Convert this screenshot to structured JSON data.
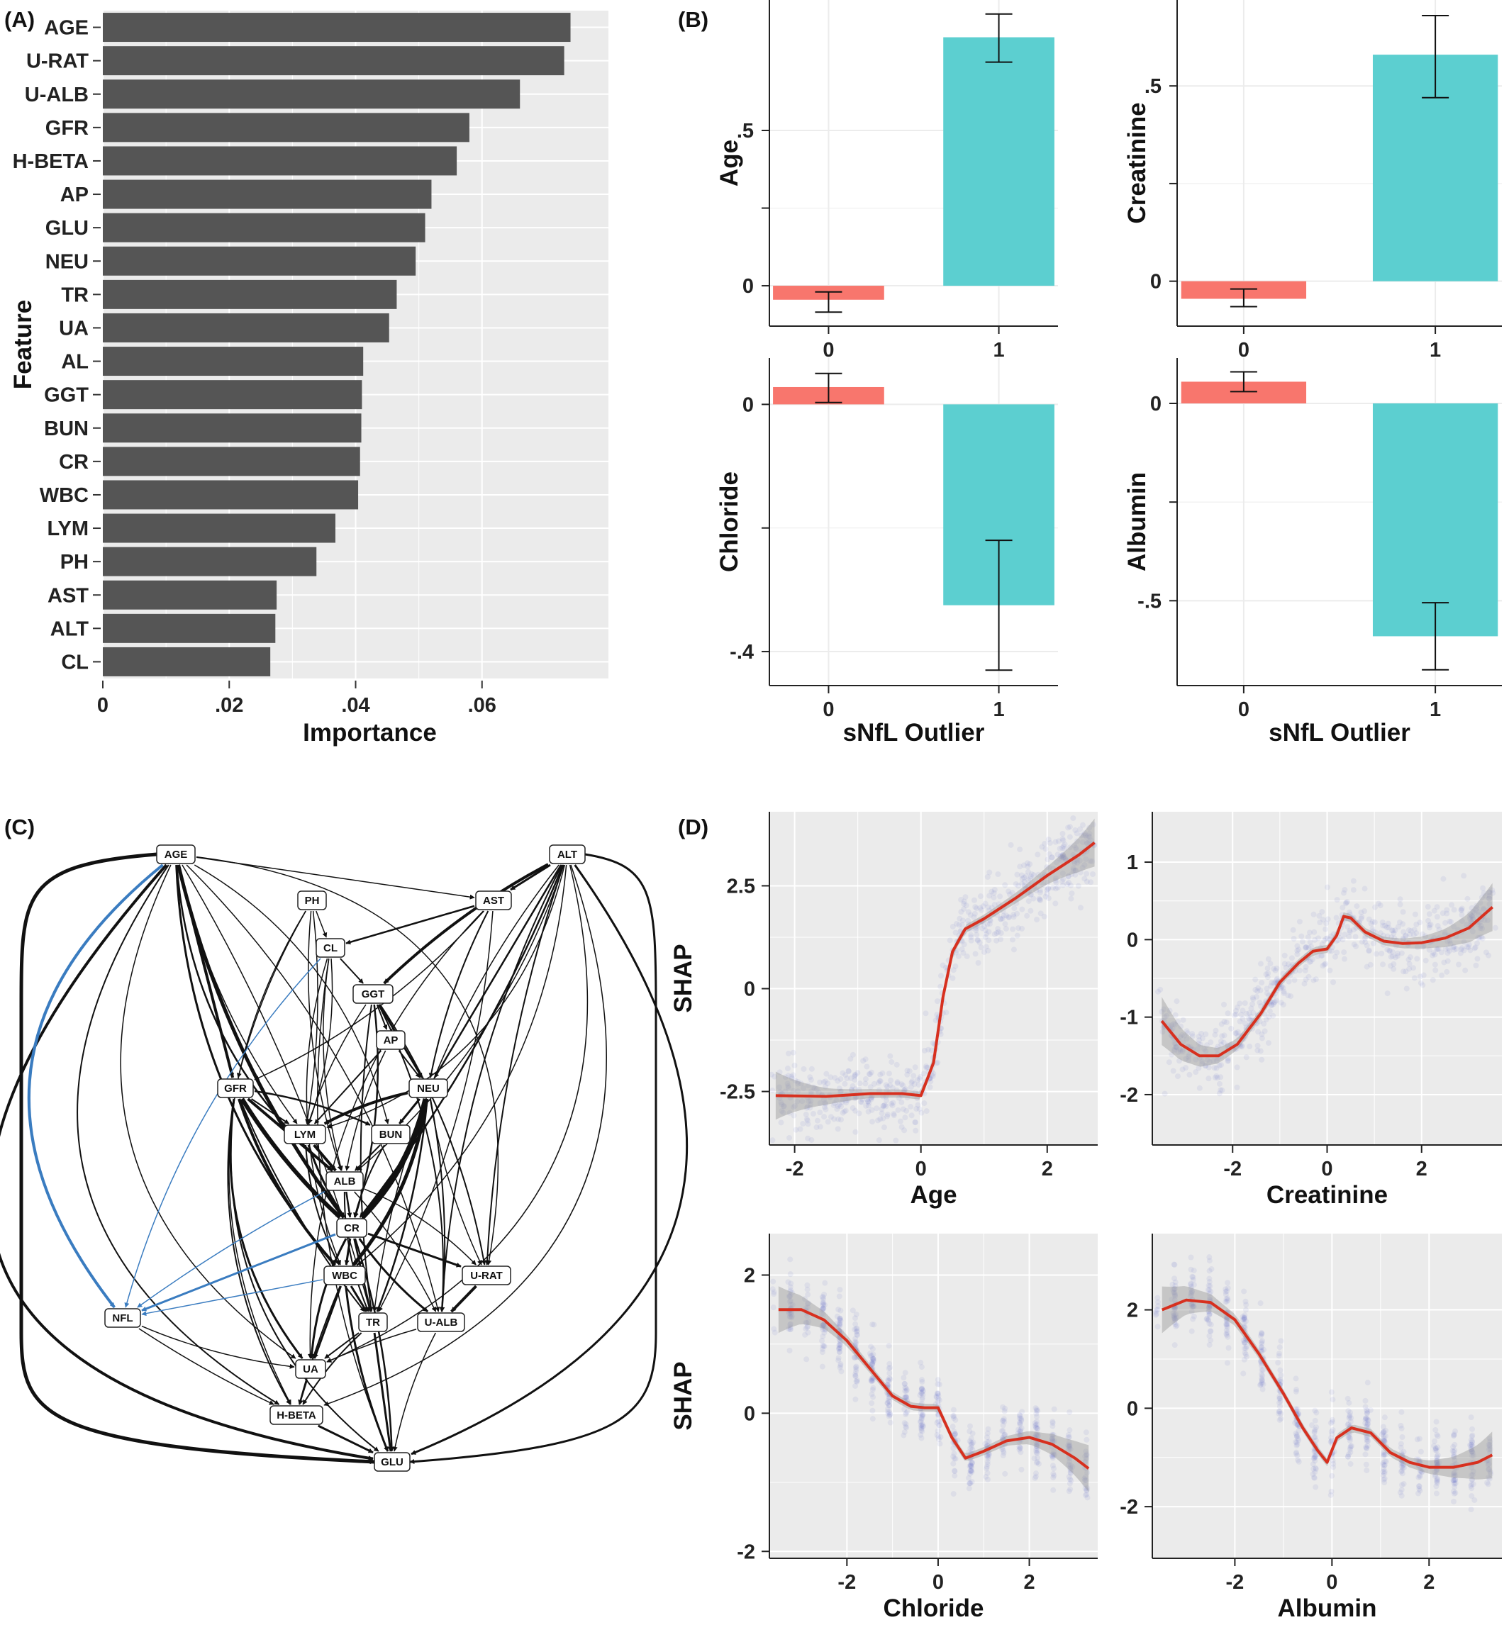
{
  "panels": {
    "a": {
      "label": "(A)"
    },
    "b": {
      "label": "(B)"
    },
    "c": {
      "label": "(C)"
    },
    "d": {
      "label": "(D)"
    }
  },
  "colors": {
    "bar": "#555555",
    "panel_bg": "#ebebeb",
    "group0": "#f8766d",
    "group1": "#5ccfd0",
    "smooth": "#d7301f",
    "points": "#5865c4",
    "edge": "#111111",
    "edge_nfl": "#3a7cc0",
    "nfl_node": "#3a7cc0"
  },
  "chart_data": [
    {
      "id": "A",
      "type": "bar",
      "orientation": "horizontal",
      "title": "",
      "xlabel": "Importance",
      "ylabel": "Feature",
      "xticks": [
        0,
        0.02,
        0.04,
        0.06
      ],
      "xtick_labels": [
        "0",
        ".02",
        ".04",
        ".06"
      ],
      "xlim": [
        0,
        0.08
      ],
      "grid": true,
      "categories": [
        "AGE",
        "U-RAT",
        "U-ALB",
        "GFR",
        "H-BETA",
        "AP",
        "GLU",
        "NEU",
        "TR",
        "UA",
        "AL",
        "GGT",
        "BUN",
        "CR",
        "WBC",
        "LYM",
        "PH",
        "AST",
        "ALT",
        "CL"
      ],
      "values": [
        0.074,
        0.073,
        0.066,
        0.058,
        0.056,
        0.052,
        0.051,
        0.0495,
        0.0465,
        0.0453,
        0.0412,
        0.041,
        0.0409,
        0.0407,
        0.0404,
        0.0368,
        0.0338,
        0.0275,
        0.0273,
        0.0265
      ]
    },
    {
      "id": "B",
      "type": "bar",
      "xlabel": "sNfL Outlier",
      "categories": [
        "0",
        "1"
      ],
      "facets": [
        {
          "ylabel": "Age",
          "values": [
            -0.045,
            0.8
          ],
          "err_low": [
            -0.085,
            0.72
          ],
          "err_high": [
            -0.02,
            0.875
          ],
          "ylim": [
            -0.13,
            0.92
          ],
          "yticks": [
            0,
            0.5
          ],
          "ytick_labels": [
            "0",
            ".5"
          ]
        },
        {
          "ylabel": "Creatinine",
          "values": [
            -0.045,
            0.58
          ],
          "err_low": [
            -0.065,
            0.47
          ],
          "err_high": [
            -0.02,
            0.68
          ],
          "ylim": [
            -0.115,
            0.72
          ],
          "yticks": [
            0,
            0.5
          ],
          "ytick_labels": [
            "0",
            ".5"
          ]
        },
        {
          "ylabel": "Chloride",
          "values": [
            0.028,
            -0.325
          ],
          "err_low": [
            0.003,
            -0.43
          ],
          "err_high": [
            0.05,
            -0.22
          ],
          "ylim": [
            -0.455,
            0.075
          ],
          "yticks": [
            -0.4,
            0
          ],
          "ytick_labels": [
            "-.4",
            "0"
          ]
        },
        {
          "ylabel": "Albumin",
          "values": [
            0.055,
            -0.59
          ],
          "err_low": [
            0.03,
            -0.675
          ],
          "err_high": [
            0.08,
            -0.505
          ],
          "ylim": [
            -0.715,
            0.115
          ],
          "yticks": [
            -0.5,
            0
          ],
          "ytick_labels": [
            "-.5",
            "0"
          ]
        }
      ]
    },
    {
      "id": "C",
      "type": "diagram",
      "nodes": [
        "AGE",
        "ALT",
        "PH",
        "AST",
        "CL",
        "GGT",
        "AP",
        "GFR",
        "NEU",
        "LYM",
        "BUN",
        "ALB",
        "CR",
        "WBC",
        "U-RAT",
        "NFL",
        "TR",
        "U-ALB",
        "UA",
        "H-BETA",
        "GLU"
      ]
    },
    {
      "id": "D",
      "type": "scatter",
      "ylabel": "SHAP",
      "facets": [
        {
          "xlabel": "Age",
          "xlim": [
            -2.4,
            2.8
          ],
          "ylim": [
            -3.8,
            4.3
          ],
          "xticks": [
            -2,
            0,
            2
          ],
          "xtick_labels": [
            "-2",
            "0",
            "2"
          ],
          "yticks": [
            -2.5,
            0,
            2.5
          ],
          "ytick_labels": [
            "-2.5",
            "0",
            "2.5"
          ],
          "smooth_x": [
            -2.3,
            -1.5,
            -0.8,
            -0.3,
            0,
            0.2,
            0.35,
            0.5,
            0.7,
            1.0,
            1.5,
            2.0,
            2.5,
            2.75
          ],
          "smooth_y": [
            -2.6,
            -2.62,
            -2.55,
            -2.55,
            -2.6,
            -1.8,
            -0.2,
            0.9,
            1.45,
            1.7,
            2.2,
            2.75,
            3.25,
            3.55
          ]
        },
        {
          "xlabel": "Creatinine",
          "xlim": [
            -3.7,
            3.7
          ],
          "ylim": [
            -2.65,
            1.65
          ],
          "xticks": [
            -2,
            0,
            2
          ],
          "xtick_labels": [
            "-2",
            "0",
            "2"
          ],
          "yticks": [
            -2,
            -1,
            0,
            1
          ],
          "ytick_labels": [
            "-2",
            "-1",
            "0",
            "1"
          ],
          "smooth_x": [
            -3.5,
            -3.1,
            -2.7,
            -2.3,
            -1.9,
            -1.4,
            -1.0,
            -0.6,
            -0.3,
            0.0,
            0.2,
            0.35,
            0.5,
            0.8,
            1.2,
            1.6,
            2.0,
            2.5,
            3.0,
            3.5
          ],
          "smooth_y": [
            -1.05,
            -1.35,
            -1.5,
            -1.5,
            -1.35,
            -0.95,
            -0.55,
            -0.3,
            -0.15,
            -0.12,
            0.05,
            0.3,
            0.28,
            0.1,
            -0.02,
            -0.05,
            -0.04,
            0.02,
            0.15,
            0.42
          ]
        },
        {
          "xlabel": "Chloride",
          "xlim": [
            -3.7,
            3.5
          ],
          "ylim": [
            -2.1,
            2.6
          ],
          "xticks": [
            -2,
            0,
            2
          ],
          "xtick_labels": [
            "-2",
            "0",
            "2"
          ],
          "yticks": [
            -2,
            0,
            2
          ],
          "ytick_labels": [
            "-2",
            "0",
            "2"
          ],
          "smooth_x": [
            -3.5,
            -3.0,
            -2.5,
            -2.0,
            -1.5,
            -1.0,
            -0.6,
            -0.3,
            0.0,
            0.3,
            0.6,
            1.0,
            1.5,
            2.0,
            2.5,
            3.0,
            3.3
          ],
          "smooth_y": [
            1.5,
            1.5,
            1.35,
            1.05,
            0.65,
            0.25,
            0.1,
            0.08,
            0.08,
            -0.35,
            -0.65,
            -0.55,
            -0.4,
            -0.35,
            -0.45,
            -0.65,
            -0.8
          ]
        },
        {
          "xlabel": "Albumin",
          "xlim": [
            -3.7,
            3.5
          ],
          "ylim": [
            -3.05,
            3.55
          ],
          "xticks": [
            -2,
            0,
            2
          ],
          "xtick_labels": [
            "-2",
            "0",
            "2"
          ],
          "yticks": [
            -2,
            0,
            2
          ],
          "ytick_labels": [
            "-2",
            "0",
            "2"
          ],
          "smooth_x": [
            -3.5,
            -3.0,
            -2.5,
            -2.0,
            -1.5,
            -1.0,
            -0.6,
            -0.3,
            -0.1,
            0.1,
            0.4,
            0.8,
            1.2,
            1.6,
            2.0,
            2.5,
            3.0,
            3.3
          ],
          "smooth_y": [
            2.0,
            2.2,
            2.15,
            1.8,
            1.1,
            0.3,
            -0.4,
            -0.85,
            -1.1,
            -0.6,
            -0.4,
            -0.5,
            -0.9,
            -1.1,
            -1.2,
            -1.2,
            -1.1,
            -0.95
          ]
        }
      ]
    }
  ]
}
